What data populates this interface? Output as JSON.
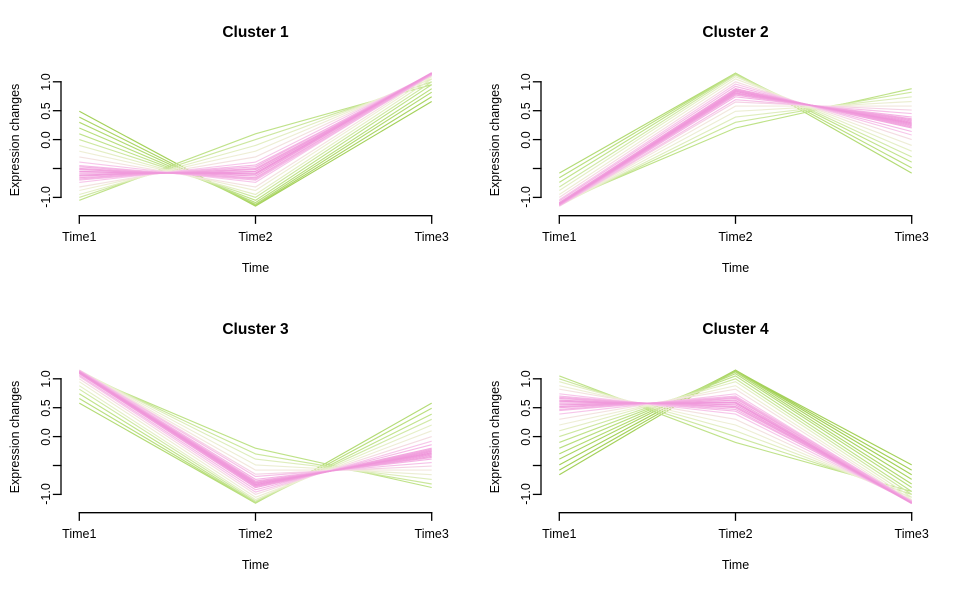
{
  "colors": {
    "background": "#FFFFFF",
    "axis": "#000000",
    "text": "#000000",
    "membership_ramp": [
      [
        0.0,
        "#A4D159"
      ],
      [
        0.4,
        "#C2E48E"
      ],
      [
        0.58,
        "#E9F0CE"
      ],
      [
        0.7,
        "#F2EBDC"
      ],
      [
        0.82,
        "#F7C6EA"
      ],
      [
        1.0,
        "#EF96DA"
      ]
    ]
  },
  "chart_data": [
    {
      "type": "line",
      "title": "Cluster 1",
      "xlabel": "Time",
      "ylabel": "Expression changes",
      "categories": [
        "Time1",
        "Time2",
        "Time3"
      ],
      "ylim": [
        -1.2,
        1.2
      ],
      "grid": false,
      "legend": "none",
      "y_ticks": [
        {
          "v": 1.0,
          "label": "1.0"
        },
        {
          "v": 0.5,
          "label": "0.5"
        },
        {
          "v": 0.0,
          "label": "0.0"
        },
        {
          "v": -0.5,
          "label": ""
        },
        {
          "v": -1.0,
          "label": "-1.0"
        }
      ],
      "lines": [
        [
          -1.05,
          0.1,
          0.95,
          0.36
        ],
        [
          -1.0,
          0.0,
          1.0,
          0.45
        ],
        [
          -0.95,
          -0.1,
          1.05,
          0.55
        ],
        [
          -0.88,
          -0.2,
          1.09,
          0.64
        ],
        [
          -0.82,
          -0.3,
          1.12,
          0.73
        ],
        [
          -0.74,
          -0.39,
          1.14,
          0.82
        ],
        [
          -0.68,
          -0.47,
          1.15,
          0.89
        ],
        [
          -0.63,
          -0.52,
          1.15,
          0.95
        ],
        [
          -0.58,
          -0.58,
          1.15,
          1.0
        ],
        [
          -0.52,
          -0.63,
          1.15,
          0.95
        ],
        [
          -0.47,
          -0.68,
          1.15,
          0.89
        ],
        [
          -0.39,
          -0.74,
          1.14,
          0.82
        ],
        [
          -0.3,
          -0.82,
          1.12,
          0.73
        ],
        [
          -0.2,
          -0.88,
          1.09,
          0.64
        ],
        [
          -0.1,
          -0.95,
          1.05,
          0.55
        ],
        [
          0.0,
          -1.0,
          1.0,
          0.45
        ],
        [
          0.1,
          -1.05,
          0.95,
          0.36
        ],
        [
          0.2,
          -1.09,
          0.88,
          0.27
        ],
        [
          0.3,
          -1.12,
          0.82,
          0.18
        ],
        [
          0.39,
          -1.14,
          0.74,
          0.09
        ],
        [
          0.49,
          -1.15,
          0.66,
          0.0
        ],
        [
          -0.61,
          -0.55,
          1.16,
          0.97
        ],
        [
          -0.55,
          -0.6,
          1.14,
          0.97
        ],
        [
          -0.5,
          -0.66,
          1.13,
          0.92
        ],
        [
          -0.45,
          -0.7,
          1.12,
          0.87
        ],
        [
          -0.66,
          -0.5,
          1.13,
          0.92
        ],
        [
          -0.7,
          -0.44,
          1.11,
          0.87
        ]
      ]
    },
    {
      "type": "line",
      "title": "Cluster 2",
      "xlabel": "Time",
      "ylabel": "Expression changes",
      "categories": [
        "Time1",
        "Time2",
        "Time3"
      ],
      "ylim": [
        -1.2,
        1.2
      ],
      "grid": false,
      "legend": "none",
      "y_ticks": [
        {
          "v": 1.0,
          "label": "1.0"
        },
        {
          "v": 0.5,
          "label": "0.5"
        },
        {
          "v": 0.0,
          "label": "0.0"
        },
        {
          "v": -0.5,
          "label": ""
        },
        {
          "v": -1.0,
          "label": "-1.0"
        }
      ],
      "lines": [
        [
          -0.58,
          1.15,
          -0.58,
          0.2
        ],
        [
          -0.66,
          1.15,
          -0.49,
          0.29
        ],
        [
          -0.74,
          1.14,
          -0.39,
          0.38
        ],
        [
          -0.82,
          1.12,
          -0.3,
          0.47
        ],
        [
          -0.88,
          1.09,
          -0.2,
          0.56
        ],
        [
          -0.95,
          1.05,
          -0.1,
          0.65
        ],
        [
          -1.0,
          1.0,
          0.0,
          0.75
        ],
        [
          -1.04,
          0.96,
          0.08,
          0.82
        ],
        [
          -1.06,
          0.92,
          0.14,
          0.87
        ],
        [
          -1.09,
          0.88,
          0.2,
          0.93
        ],
        [
          -1.1,
          0.86,
          0.24,
          0.96
        ],
        [
          -1.11,
          0.83,
          0.28,
          1.0
        ],
        [
          -1.12,
          0.8,
          0.32,
          0.96
        ],
        [
          -1.13,
          0.77,
          0.36,
          0.93
        ],
        [
          -1.14,
          0.74,
          0.39,
          0.89
        ],
        [
          -1.15,
          0.69,
          0.45,
          0.84
        ],
        [
          -1.15,
          0.65,
          0.51,
          0.78
        ],
        [
          -1.15,
          0.58,
          0.58,
          0.71
        ],
        [
          -1.15,
          0.49,
          0.66,
          0.62
        ],
        [
          -1.14,
          0.39,
          0.74,
          0.53
        ],
        [
          -1.12,
          0.3,
          0.82,
          0.44
        ],
        [
          -1.09,
          0.2,
          0.88,
          0.35
        ],
        [
          -1.1,
          0.85,
          0.26,
          0.97
        ],
        [
          -1.12,
          0.81,
          0.3,
          0.98
        ],
        [
          -1.13,
          0.79,
          0.34,
          0.95
        ],
        [
          -1.09,
          0.88,
          0.22,
          0.94
        ]
      ]
    },
    {
      "type": "line",
      "title": "Cluster 3",
      "xlabel": "Time",
      "ylabel": "Expression changes",
      "categories": [
        "Time1",
        "Time2",
        "Time3"
      ],
      "ylim": [
        -1.2,
        1.2
      ],
      "grid": false,
      "legend": "none",
      "y_ticks": [
        {
          "v": 1.0,
          "label": "1.0"
        },
        {
          "v": 0.5,
          "label": "0.5"
        },
        {
          "v": 0.0,
          "label": "0.0"
        },
        {
          "v": -0.5,
          "label": ""
        },
        {
          "v": -1.0,
          "label": "-1.0"
        }
      ],
      "lines": [
        [
          0.58,
          -1.15,
          0.58,
          0.2
        ],
        [
          0.66,
          -1.15,
          0.49,
          0.29
        ],
        [
          0.74,
          -1.14,
          0.39,
          0.38
        ],
        [
          0.82,
          -1.12,
          0.3,
          0.47
        ],
        [
          0.88,
          -1.09,
          0.2,
          0.56
        ],
        [
          0.95,
          -1.05,
          0.1,
          0.65
        ],
        [
          1.0,
          -1.0,
          0.0,
          0.75
        ],
        [
          1.04,
          -0.96,
          -0.08,
          0.82
        ],
        [
          1.06,
          -0.92,
          -0.14,
          0.87
        ],
        [
          1.09,
          -0.88,
          -0.2,
          0.93
        ],
        [
          1.1,
          -0.86,
          -0.24,
          0.96
        ],
        [
          1.11,
          -0.83,
          -0.28,
          1.0
        ],
        [
          1.12,
          -0.8,
          -0.32,
          0.96
        ],
        [
          1.13,
          -0.77,
          -0.36,
          0.93
        ],
        [
          1.14,
          -0.74,
          -0.39,
          0.89
        ],
        [
          1.15,
          -0.69,
          -0.45,
          0.84
        ],
        [
          1.15,
          -0.65,
          -0.51,
          0.78
        ],
        [
          1.15,
          -0.58,
          -0.58,
          0.71
        ],
        [
          1.15,
          -0.49,
          -0.66,
          0.62
        ],
        [
          1.14,
          -0.39,
          -0.74,
          0.53
        ],
        [
          1.12,
          -0.3,
          -0.82,
          0.44
        ],
        [
          1.09,
          -0.2,
          -0.88,
          0.35
        ],
        [
          1.1,
          -0.85,
          -0.26,
          0.97
        ],
        [
          1.12,
          -0.81,
          -0.3,
          0.98
        ],
        [
          1.13,
          -0.79,
          -0.34,
          0.95
        ],
        [
          1.09,
          -0.88,
          -0.22,
          0.94
        ]
      ]
    },
    {
      "type": "line",
      "title": "Cluster 4",
      "xlabel": "Time",
      "ylabel": "Expression changes",
      "categories": [
        "Time1",
        "Time2",
        "Time3"
      ],
      "ylim": [
        -1.2,
        1.2
      ],
      "grid": false,
      "legend": "none",
      "y_ticks": [
        {
          "v": 1.0,
          "label": "1.0"
        },
        {
          "v": 0.5,
          "label": "0.5"
        },
        {
          "v": 0.0,
          "label": "0.0"
        },
        {
          "v": -0.5,
          "label": ""
        },
        {
          "v": -1.0,
          "label": "-1.0"
        }
      ],
      "lines": [
        [
          1.05,
          -0.1,
          -0.95,
          0.36
        ],
        [
          1.0,
          0.0,
          -1.0,
          0.45
        ],
        [
          0.95,
          0.1,
          -1.05,
          0.55
        ],
        [
          0.88,
          0.2,
          -1.09,
          0.64
        ],
        [
          0.82,
          0.3,
          -1.12,
          0.73
        ],
        [
          0.74,
          0.39,
          -1.14,
          0.82
        ],
        [
          0.68,
          0.47,
          -1.15,
          0.89
        ],
        [
          0.63,
          0.52,
          -1.15,
          0.95
        ],
        [
          0.58,
          0.58,
          -1.15,
          1.0
        ],
        [
          0.52,
          0.63,
          -1.15,
          0.95
        ],
        [
          0.47,
          0.68,
          -1.15,
          0.89
        ],
        [
          0.39,
          0.74,
          -1.14,
          0.82
        ],
        [
          0.3,
          0.82,
          -1.12,
          0.73
        ],
        [
          0.2,
          0.88,
          -1.09,
          0.64
        ],
        [
          0.1,
          0.95,
          -1.05,
          0.55
        ],
        [
          0.0,
          1.0,
          -1.0,
          0.45
        ],
        [
          -0.1,
          1.05,
          -0.95,
          0.36
        ],
        [
          -0.2,
          1.09,
          -0.88,
          0.27
        ],
        [
          -0.3,
          1.12,
          -0.82,
          0.18
        ],
        [
          -0.39,
          1.14,
          -0.74,
          0.09
        ],
        [
          -0.49,
          1.15,
          -0.66,
          0.0
        ],
        [
          -0.58,
          1.15,
          -0.58,
          0.0
        ],
        [
          -0.66,
          1.14,
          -0.49,
          0.0
        ],
        [
          0.61,
          0.55,
          -1.16,
          0.97
        ],
        [
          0.55,
          0.6,
          -1.14,
          0.97
        ],
        [
          0.5,
          0.66,
          -1.13,
          0.92
        ],
        [
          0.45,
          0.7,
          -1.12,
          0.87
        ],
        [
          0.66,
          0.5,
          -1.13,
          0.92
        ],
        [
          0.7,
          0.44,
          -1.11,
          0.87
        ]
      ]
    }
  ]
}
